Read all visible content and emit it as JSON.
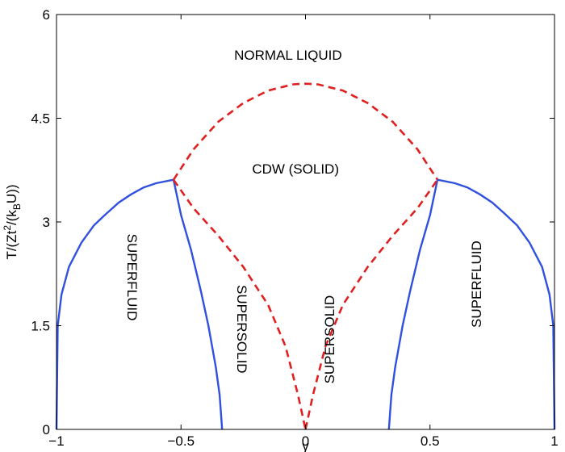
{
  "chart_data": {
    "type": "line",
    "xlabel": "γ",
    "ylabel": {
      "main": "T/(Zt",
      "sup": "2",
      "mid": "/(k",
      "sub": "B",
      "end": "U))"
    },
    "xlim": [
      -1,
      1
    ],
    "ylim": [
      0,
      6
    ],
    "xticks": [
      {
        "value": -1,
        "label": "−1"
      },
      {
        "value": -0.5,
        "label": "−0.5"
      },
      {
        "value": 0,
        "label": "0"
      },
      {
        "value": 0.5,
        "label": "0.5"
      },
      {
        "value": 1,
        "label": "1"
      }
    ],
    "yticks": [
      {
        "value": 0,
        "label": "0"
      },
      {
        "value": 1.5,
        "label": "1.5"
      },
      {
        "value": 3,
        "label": "3"
      },
      {
        "value": 4.5,
        "label": "4.5"
      },
      {
        "value": 6,
        "label": "6"
      }
    ],
    "grid": false,
    "colors": {
      "solid_boundary": "#3050e0",
      "dashed_boundary": "#e02020"
    },
    "series": [
      {
        "style": "solid",
        "color": "#3050e0",
        "points": [
          [
            -1.0,
            0.0
          ],
          [
            -0.995,
            1.5
          ],
          [
            -0.98,
            1.95
          ],
          [
            -0.95,
            2.35
          ],
          [
            -0.9,
            2.7
          ],
          [
            -0.85,
            2.95
          ],
          [
            -0.8,
            3.12
          ],
          [
            -0.75,
            3.28
          ],
          [
            -0.7,
            3.4
          ],
          [
            -0.65,
            3.5
          ],
          [
            -0.6,
            3.56
          ],
          [
            -0.53,
            3.61
          ]
        ]
      },
      {
        "style": "solid",
        "color": "#3050e0",
        "points": [
          [
            -0.53,
            3.61
          ],
          [
            -0.5,
            3.1
          ],
          [
            -0.46,
            2.6
          ],
          [
            -0.42,
            2.0
          ],
          [
            -0.39,
            1.5
          ],
          [
            -0.36,
            0.9
          ],
          [
            -0.345,
            0.5
          ],
          [
            -0.335,
            0.0
          ]
        ]
      },
      {
        "style": "solid",
        "color": "#3050e0",
        "points": [
          [
            0.335,
            0.0
          ],
          [
            0.345,
            0.5
          ],
          [
            0.36,
            0.9
          ],
          [
            0.39,
            1.5
          ],
          [
            0.42,
            2.0
          ],
          [
            0.46,
            2.6
          ],
          [
            0.5,
            3.1
          ],
          [
            0.53,
            3.61
          ]
        ]
      },
      {
        "style": "solid",
        "color": "#3050e0",
        "points": [
          [
            0.53,
            3.61
          ],
          [
            0.6,
            3.56
          ],
          [
            0.65,
            3.5
          ],
          [
            0.7,
            3.4
          ],
          [
            0.75,
            3.28
          ],
          [
            0.8,
            3.12
          ],
          [
            0.85,
            2.95
          ],
          [
            0.9,
            2.7
          ],
          [
            0.95,
            2.35
          ],
          [
            0.98,
            1.95
          ],
          [
            0.995,
            1.5
          ],
          [
            1.0,
            0.0
          ]
        ]
      },
      {
        "style": "dashed",
        "color": "#e02020",
        "points": [
          [
            -0.53,
            3.61
          ],
          [
            -0.45,
            4.05
          ],
          [
            -0.35,
            4.45
          ],
          [
            -0.25,
            4.72
          ],
          [
            -0.15,
            4.9
          ],
          [
            -0.05,
            4.99
          ],
          [
            0.0,
            5.0
          ],
          [
            0.05,
            4.99
          ],
          [
            0.15,
            4.9
          ],
          [
            0.25,
            4.72
          ],
          [
            0.35,
            4.45
          ],
          [
            0.45,
            4.05
          ],
          [
            0.53,
            3.61
          ]
        ]
      },
      {
        "style": "dashed",
        "color": "#e02020",
        "points": [
          [
            -0.53,
            3.61
          ],
          [
            -0.45,
            3.2
          ],
          [
            -0.35,
            2.8
          ],
          [
            -0.25,
            2.35
          ],
          [
            -0.15,
            1.8
          ],
          [
            -0.08,
            1.2
          ],
          [
            -0.03,
            0.5
          ],
          [
            0.0,
            0.0
          ]
        ]
      },
      {
        "style": "dashed",
        "color": "#e02020",
        "points": [
          [
            0.0,
            0.0
          ],
          [
            0.03,
            0.5
          ],
          [
            0.08,
            1.2
          ],
          [
            0.15,
            1.8
          ],
          [
            0.25,
            2.35
          ],
          [
            0.35,
            2.8
          ],
          [
            0.45,
            3.2
          ],
          [
            0.53,
            3.61
          ]
        ]
      }
    ],
    "annotations": [
      {
        "text": "NORMAL LIQUID",
        "x": -0.07,
        "y": 5.4,
        "rotation": 0
      },
      {
        "text": "CDW (SOLID)",
        "x": -0.04,
        "y": 3.75,
        "rotation": 0
      },
      {
        "text": "SUPERFLUID",
        "x": -0.7,
        "y": 2.2,
        "rotation": 90
      },
      {
        "text": "SUPERSOLID",
        "x": -0.26,
        "y": 1.45,
        "rotation": 90
      },
      {
        "text": "SUPERSOLID",
        "x": 0.1,
        "y": 1.3,
        "rotation": -90
      },
      {
        "text": "SUPERFLUID",
        "x": 0.69,
        "y": 2.1,
        "rotation": -90
      }
    ]
  }
}
